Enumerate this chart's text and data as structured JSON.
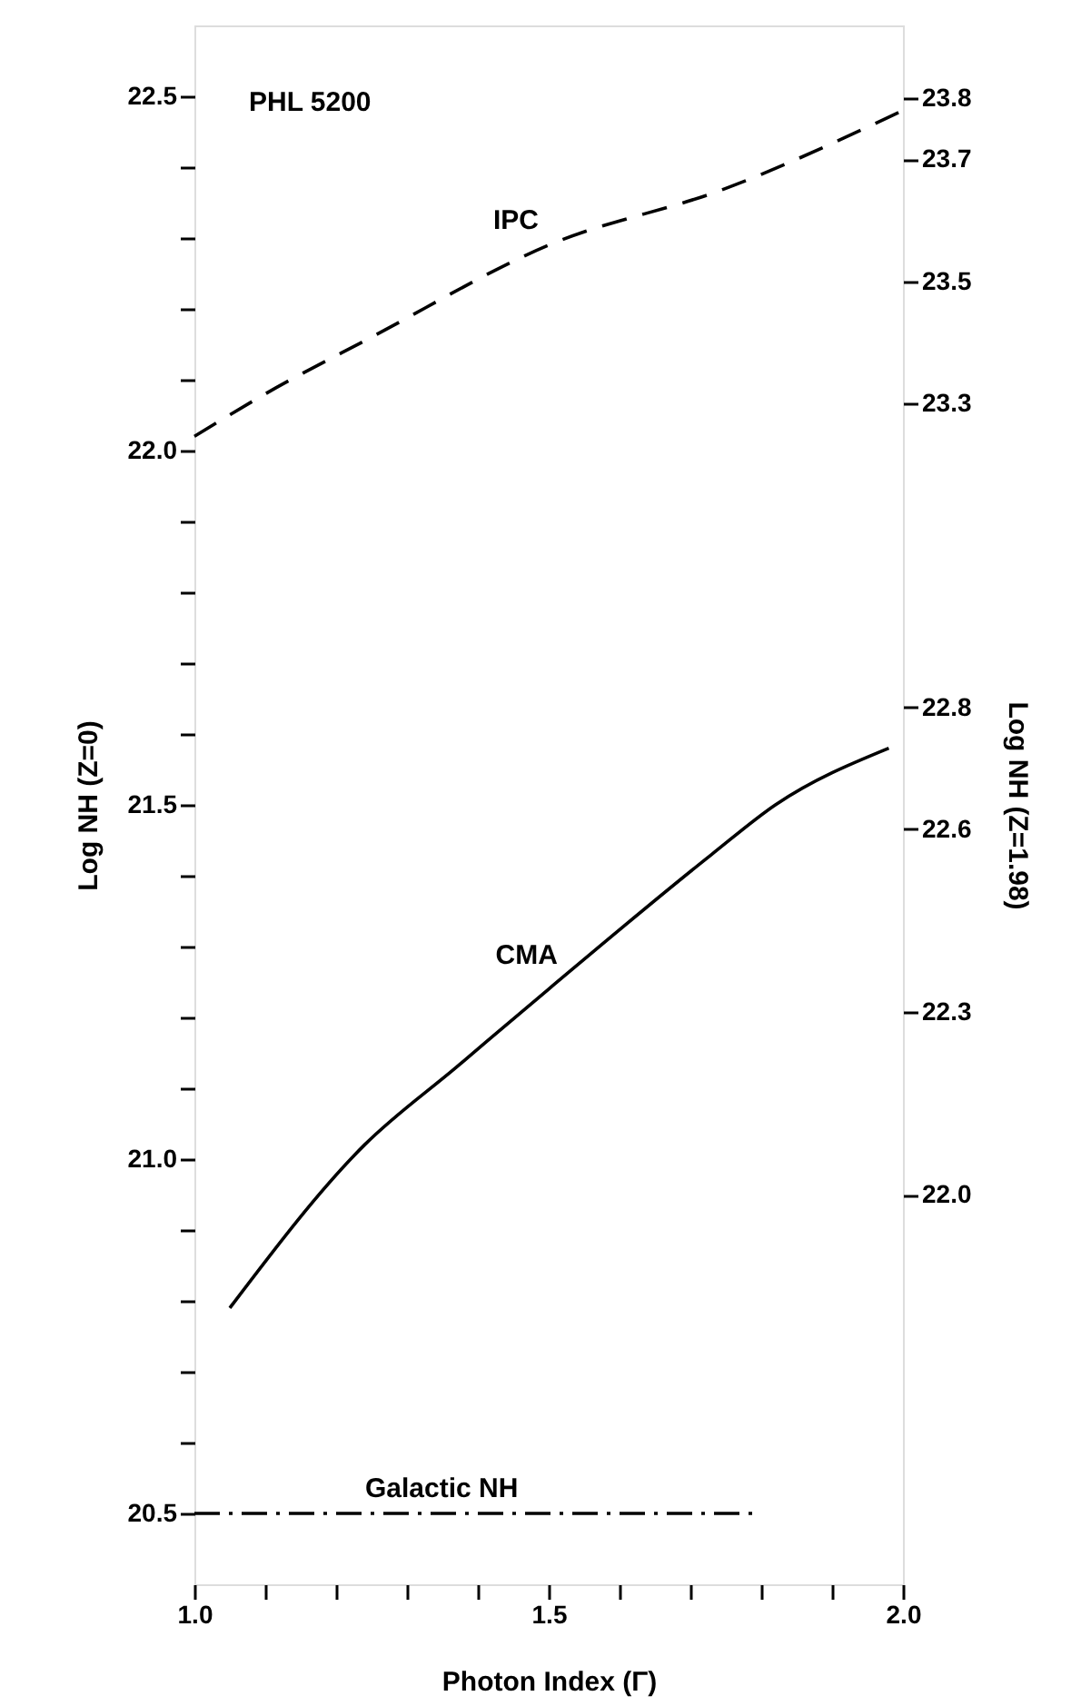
{
  "chart_data": {
    "type": "line",
    "xlabel": "Photon Index (Γ)",
    "ylabel": "Log NH (Z=0)",
    "y2label": "Log NH (Z=1.98)",
    "annotations": [
      "PHL 5200"
    ],
    "xlim": [
      1.0,
      2.0
    ],
    "ylim": [
      20.4,
      22.6
    ],
    "y2lim": [
      21.36,
      23.92
    ],
    "xticks": [
      {
        "value": 1.0,
        "label": "1.0"
      },
      {
        "value": 1.1,
        "label": null
      },
      {
        "value": 1.2,
        "label": null
      },
      {
        "value": 1.3,
        "label": null
      },
      {
        "value": 1.4,
        "label": null
      },
      {
        "value": 1.5,
        "label": "1.5"
      },
      {
        "value": 1.6,
        "label": null
      },
      {
        "value": 1.7,
        "label": null
      },
      {
        "value": 1.8,
        "label": null
      },
      {
        "value": 1.9,
        "label": null
      },
      {
        "value": 2.0,
        "label": "2.0"
      }
    ],
    "yticks": [
      {
        "value": 20.5,
        "label": "20.5"
      },
      {
        "value": 20.6,
        "label": null
      },
      {
        "value": 20.7,
        "label": null
      },
      {
        "value": 20.8,
        "label": null
      },
      {
        "value": 20.9,
        "label": null
      },
      {
        "value": 21.0,
        "label": "21.0"
      },
      {
        "value": 21.1,
        "label": null
      },
      {
        "value": 21.2,
        "label": null
      },
      {
        "value": 21.3,
        "label": null
      },
      {
        "value": 21.4,
        "label": null
      },
      {
        "value": 21.5,
        "label": "21.5"
      },
      {
        "value": 21.6,
        "label": null
      },
      {
        "value": 21.7,
        "label": null
      },
      {
        "value": 21.8,
        "label": null
      },
      {
        "value": 21.9,
        "label": null
      },
      {
        "value": 22.0,
        "label": "22.0"
      },
      {
        "value": 22.1,
        "label": null
      },
      {
        "value": 22.2,
        "label": null
      },
      {
        "value": 22.3,
        "label": null
      },
      {
        "value": 22.4,
        "label": null
      },
      {
        "value": 22.5,
        "label": "22.5"
      }
    ],
    "y2ticks": [
      {
        "value": 22.0,
        "label": "22.0"
      },
      22.3,
      22.6,
      22.8,
      23.3,
      23.5,
      23.7,
      23.8
    ],
    "grid": false,
    "legend": false,
    "marker": "none",
    "series": [
      {
        "name": "IPC",
        "color": "#000000",
        "line_style": "dashed",
        "x": [
          1.0,
          1.1,
          1.25,
          1.5,
          1.75,
          2.0
        ],
        "values": [
          22.02,
          22.08,
          22.16,
          22.29,
          22.37,
          22.48
        ]
      },
      {
        "name": "CMA",
        "color": "#000000",
        "line_style": "solid",
        "x": [
          1.05,
          1.24,
          1.37,
          1.5,
          1.73,
          1.82,
          1.98
        ],
        "values": [
          20.79,
          21.02,
          21.13,
          21.24,
          21.43,
          21.5,
          21.58
        ]
      },
      {
        "name": "Galactic NH",
        "color": "#000000",
        "line_style": "dashdot",
        "x": [
          1.0,
          1.79
        ],
        "values": [
          20.5,
          20.5
        ]
      }
    ]
  }
}
